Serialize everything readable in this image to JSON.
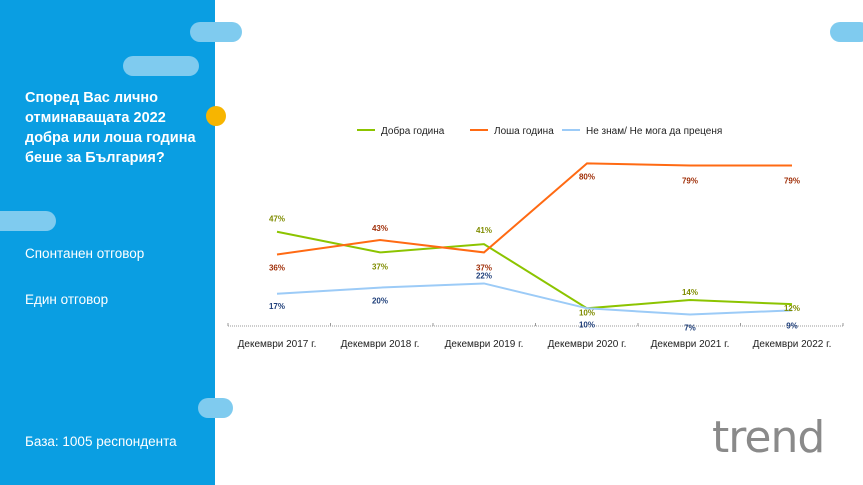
{
  "sidebar": {
    "question": "Според Вас лично отминаващата 2022 добра или лоша година беше за България?",
    "note1": "Спонтанен отговор",
    "note2": "Един отговор",
    "base": "База: 1005 респондента"
  },
  "logo": "trend",
  "colors": {
    "good": "#8cc400",
    "bad": "#ff6a13",
    "dk": "#9ccbf7",
    "sidebar": "#0a9ee2"
  },
  "chart_data": {
    "type": "line",
    "categories": [
      "Декември 2017 г.",
      "Декември 2018 г.",
      "Декември 2019 г.",
      "Декември 2020 г.",
      "Декември 2021 г.",
      "Декември 2022 г."
    ],
    "series": [
      {
        "name": "Добра година",
        "values": [
          47,
          37,
          41,
          10,
          14,
          12
        ]
      },
      {
        "name": "Лоша година",
        "values": [
          36,
          43,
          37,
          80,
          79,
          79
        ]
      },
      {
        "name": "Не знам/ Не мога да преценя",
        "values": [
          17,
          20,
          22,
          10,
          7,
          9
        ]
      }
    ],
    "legend": "top",
    "unit": "%",
    "ylim": [
      0,
      80
    ]
  }
}
